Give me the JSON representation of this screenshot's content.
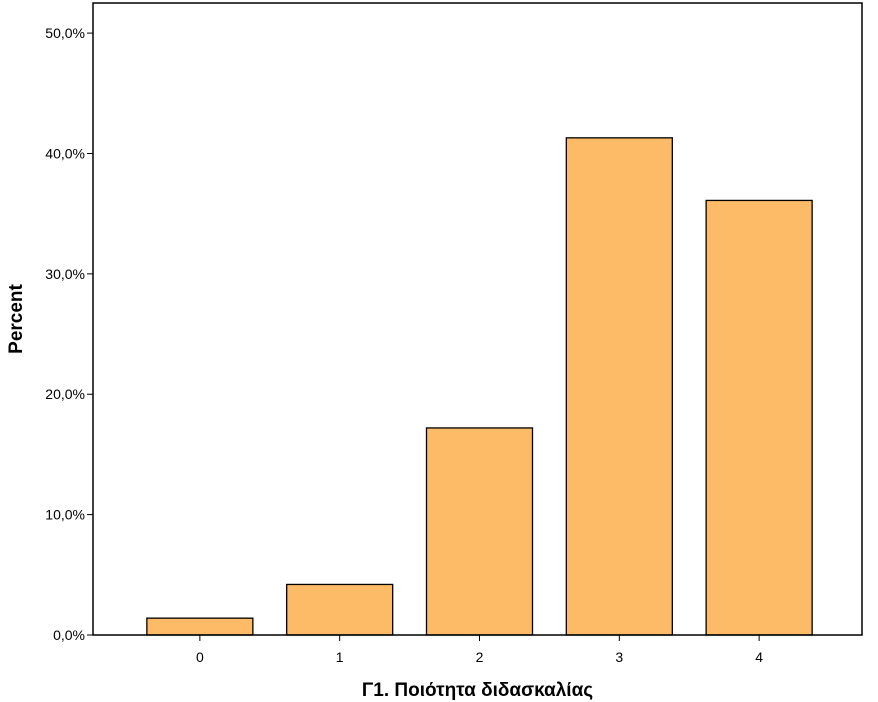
{
  "chart_data": {
    "type": "bar",
    "title": "",
    "xlabel": "Γ1. Ποιότητα διδασκαλίας",
    "ylabel": "Percent",
    "categories": [
      "0",
      "1",
      "2",
      "3",
      "4"
    ],
    "values": [
      1.4,
      4.2,
      17.2,
      41.3,
      36.1
    ],
    "ylim": [
      0,
      52.5
    ],
    "yticks": [
      0,
      10,
      20,
      30,
      40,
      50
    ],
    "ytick_labels": [
      "0,0%",
      "10,0%",
      "20,0%",
      "30,0%",
      "40,0%",
      "50,0%"
    ],
    "grid": false,
    "legend": "none",
    "bar_color": "#fdbb68",
    "bar_edge_color": "#000000"
  }
}
